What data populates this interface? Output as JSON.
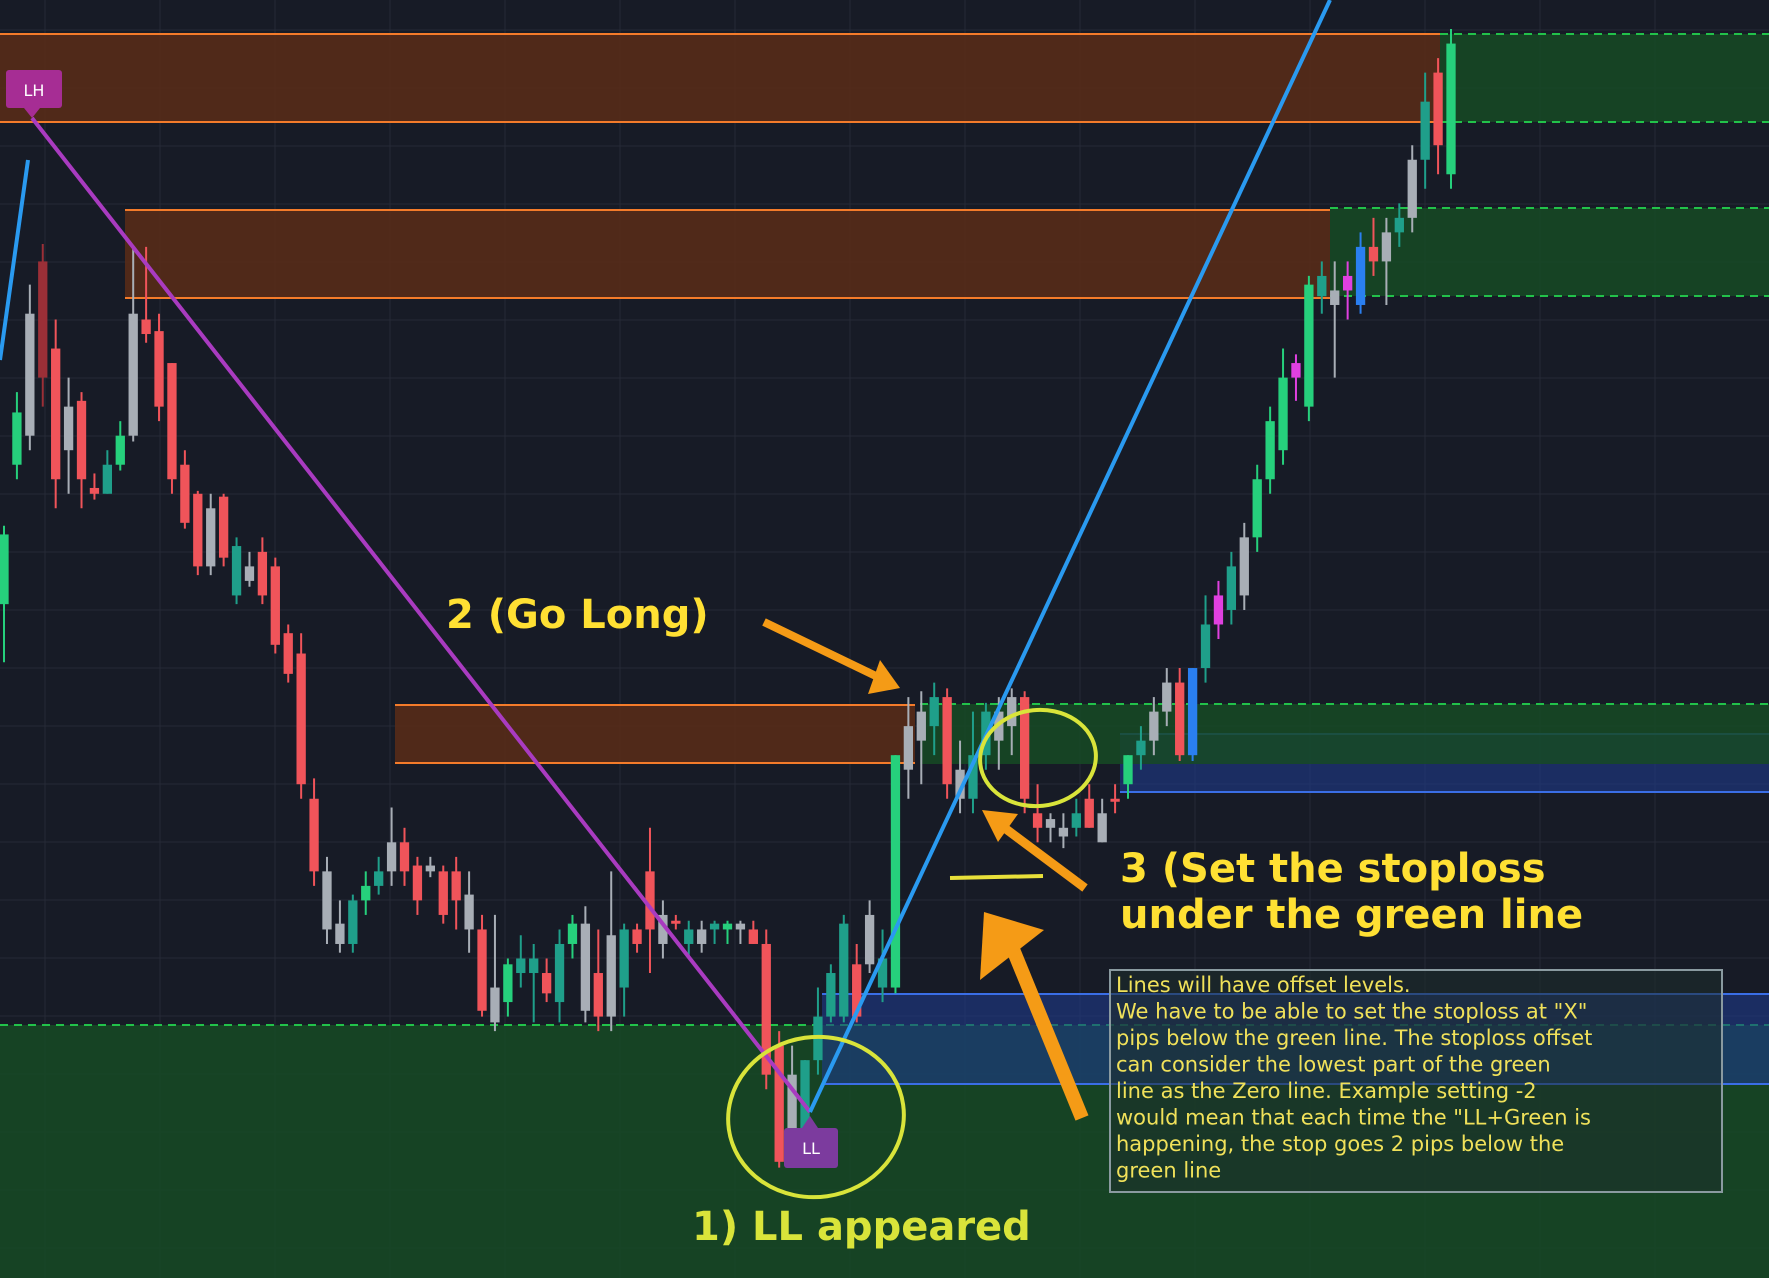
{
  "chart_data": {
    "type": "candlestick",
    "markers": [
      {
        "label": "LH",
        "color": "#a62d94"
      },
      {
        "label": "LL",
        "color": "#7c3b9e"
      }
    ],
    "annotations": [
      {
        "id": "go_long",
        "text": "2  (Go Long)",
        "color": "#ffe033"
      },
      {
        "id": "stoploss",
        "lines": [
          "3 (Set the stoploss",
          "under the green line"
        ],
        "color": "#ffe033"
      },
      {
        "id": "ll_appeared",
        "text": "1) LL appeared",
        "color": "#d9e43a"
      }
    ],
    "note_box": {
      "lines": [
        "Lines will have offset levels.",
        "We have to be able to set the stoploss at \"X\"",
        "pips below the green line. The stoploss offset",
        "can consider the lowest part of the green",
        "line as the Zero line. Example setting -2",
        "would mean that each time the \"LL+Green is",
        "happening, the stop goes 2 pips below the",
        "green line"
      ],
      "color": "#f0e15a"
    },
    "colors": {
      "background": "#171b26",
      "bull": "#26d07c",
      "bull_dark": "#1f9f8a",
      "bear": "#f0545a",
      "bear_dark": "#9b2f37",
      "neutral": "#a8aeb6",
      "magenta": "#e040e0",
      "blue": "#2a7ff0",
      "resistance_zone": "#5a2c18",
      "resistance_line": "#f47b2a",
      "support_zone": "#164a24",
      "support_line": "#22c24a",
      "trendline_down": "#a93bc0",
      "trendline_up": "#2a9af0",
      "arrow": "#f59b16"
    },
    "candles": [
      {
        "o": 0.72,
        "h": 0.99,
        "l": 0.52,
        "c": 0.96,
        "s": "bull"
      },
      {
        "o": 1.2,
        "h": 1.45,
        "l": 1.15,
        "c": 1.38,
        "s": "bull"
      },
      {
        "o": 1.3,
        "h": 1.82,
        "l": 1.25,
        "c": 1.72,
        "s": "neutral"
      },
      {
        "o": 1.5,
        "h": 1.96,
        "l": 1.4,
        "c": 1.9,
        "s": "bear_dark"
      },
      {
        "o": 1.6,
        "h": 1.7,
        "l": 1.05,
        "c": 1.15,
        "s": "bear"
      },
      {
        "o": 1.4,
        "h": 1.5,
        "l": 1.1,
        "c": 1.25,
        "s": "neutral"
      },
      {
        "o": 1.42,
        "h": 1.45,
        "l": 1.05,
        "c": 1.15,
        "s": "bear"
      },
      {
        "o": 1.12,
        "h": 1.17,
        "l": 1.08,
        "c": 1.1,
        "s": "bear"
      },
      {
        "o": 1.1,
        "h": 1.25,
        "l": 1.1,
        "c": 1.2,
        "s": "bull_dark"
      },
      {
        "o": 1.2,
        "h": 1.35,
        "l": 1.18,
        "c": 1.3,
        "s": "bull"
      },
      {
        "o": 1.3,
        "h": 1.95,
        "l": 1.28,
        "c": 1.72,
        "s": "neutral"
      },
      {
        "o": 1.7,
        "h": 1.95,
        "l": 1.62,
        "c": 1.65,
        "s": "bear"
      },
      {
        "o": 1.66,
        "h": 1.72,
        "l": 1.35,
        "c": 1.4,
        "s": "bear"
      },
      {
        "o": 1.55,
        "h": 1.55,
        "l": 1.1,
        "c": 1.15,
        "s": "bear"
      },
      {
        "o": 1.2,
        "h": 1.25,
        "l": 0.98,
        "c": 1.0,
        "s": "bear"
      },
      {
        "o": 1.1,
        "h": 1.11,
        "l": 0.82,
        "c": 0.85,
        "s": "bear"
      },
      {
        "o": 1.05,
        "h": 1.1,
        "l": 0.82,
        "c": 0.85,
        "s": "neutral"
      },
      {
        "o": 1.09,
        "h": 1.1,
        "l": 0.85,
        "c": 0.88,
        "s": "bear"
      },
      {
        "o": 0.92,
        "h": 0.95,
        "l": 0.72,
        "c": 0.75,
        "s": "bull_dark"
      },
      {
        "o": 0.85,
        "h": 0.9,
        "l": 0.78,
        "c": 0.8,
        "s": "neutral"
      },
      {
        "o": 0.9,
        "h": 0.95,
        "l": 0.72,
        "c": 0.75,
        "s": "bear"
      },
      {
        "o": 0.85,
        "h": 0.88,
        "l": 0.55,
        "c": 0.58,
        "s": "bear"
      },
      {
        "o": 0.62,
        "h": 0.65,
        "l": 0.45,
        "c": 0.48,
        "s": "bear"
      },
      {
        "o": 0.55,
        "h": 0.62,
        "l": 0.05,
        "c": 0.1,
        "s": "bear"
      },
      {
        "o": 0.05,
        "h": 0.12,
        "l": -0.25,
        "c": -0.2,
        "s": "bear"
      },
      {
        "o": -0.2,
        "h": -0.15,
        "l": -0.45,
        "c": -0.4,
        "s": "neutral"
      },
      {
        "o": -0.38,
        "h": -0.3,
        "l": -0.48,
        "c": -0.45,
        "s": "neutral"
      },
      {
        "o": -0.45,
        "h": -0.28,
        "l": -0.48,
        "c": -0.3,
        "s": "bull_dark"
      },
      {
        "o": -0.3,
        "h": -0.2,
        "l": -0.35,
        "c": -0.25,
        "s": "bull"
      },
      {
        "o": -0.25,
        "h": -0.15,
        "l": -0.28,
        "c": -0.2,
        "s": "bull_dark"
      },
      {
        "o": -0.2,
        "h": 0.02,
        "l": -0.25,
        "c": -0.1,
        "s": "neutral"
      },
      {
        "o": -0.1,
        "h": -0.05,
        "l": -0.25,
        "c": -0.2,
        "s": "bear"
      },
      {
        "o": -0.18,
        "h": -0.15,
        "l": -0.35,
        "c": -0.3,
        "s": "bear"
      },
      {
        "o": -0.2,
        "h": -0.15,
        "l": -0.22,
        "c": -0.18,
        "s": "neutral"
      },
      {
        "o": -0.2,
        "h": -0.18,
        "l": -0.38,
        "c": -0.35,
        "s": "bear"
      },
      {
        "o": -0.2,
        "h": -0.15,
        "l": -0.4,
        "c": -0.3,
        "s": "bear"
      },
      {
        "o": -0.28,
        "h": -0.2,
        "l": -0.48,
        "c": -0.4,
        "s": "neutral"
      },
      {
        "o": -0.4,
        "h": -0.35,
        "l": -0.7,
        "c": -0.68,
        "s": "bear"
      },
      {
        "o": -0.6,
        "h": -0.35,
        "l": -0.75,
        "c": -0.72,
        "s": "neutral"
      },
      {
        "o": -0.65,
        "h": -0.5,
        "l": -0.7,
        "c": -0.52,
        "s": "bull"
      },
      {
        "o": -0.55,
        "h": -0.42,
        "l": -0.6,
        "c": -0.5,
        "s": "bull_dark"
      },
      {
        "o": -0.5,
        "h": -0.45,
        "l": -0.72,
        "c": -0.55,
        "s": "bull_dark"
      },
      {
        "o": -0.55,
        "h": -0.5,
        "l": -0.65,
        "c": -0.62,
        "s": "bear"
      },
      {
        "o": -0.65,
        "h": -0.4,
        "l": -0.72,
        "c": -0.45,
        "s": "bull_dark"
      },
      {
        "o": -0.45,
        "h": -0.35,
        "l": -0.5,
        "c": -0.38,
        "s": "bull"
      },
      {
        "o": -0.38,
        "h": -0.32,
        "l": -0.72,
        "c": -0.68,
        "s": "neutral"
      },
      {
        "o": -0.55,
        "h": -0.4,
        "l": -0.75,
        "c": -0.7,
        "s": "bear"
      },
      {
        "o": -0.42,
        "h": -0.2,
        "l": -0.75,
        "c": -0.7,
        "s": "neutral"
      },
      {
        "o": -0.4,
        "h": -0.38,
        "l": -0.7,
        "c": -0.6,
        "s": "bull_dark"
      },
      {
        "o": -0.45,
        "h": -0.38,
        "l": -0.48,
        "c": -0.4,
        "s": "bear"
      },
      {
        "o": -0.4,
        "h": -0.05,
        "l": -0.55,
        "c": -0.2,
        "s": "bear"
      },
      {
        "o": -0.35,
        "h": -0.3,
        "l": -0.5,
        "c": -0.45,
        "s": "neutral"
      },
      {
        "o": -0.38,
        "h": -0.35,
        "l": -0.4,
        "c": -0.37,
        "s": "bear"
      },
      {
        "o": -0.4,
        "h": -0.37,
        "l": -0.5,
        "c": -0.45,
        "s": "bull_dark"
      },
      {
        "o": -0.45,
        "h": -0.37,
        "l": -0.48,
        "c": -0.4,
        "s": "neutral"
      },
      {
        "o": -0.38,
        "h": -0.37,
        "l": -0.45,
        "c": -0.4,
        "s": "bull_dark"
      },
      {
        "o": -0.4,
        "h": -0.37,
        "l": -0.45,
        "c": -0.38,
        "s": "bull"
      },
      {
        "o": -0.4,
        "h": -0.37,
        "l": -0.45,
        "c": -0.38,
        "s": "neutral"
      },
      {
        "o": -0.4,
        "h": -0.37,
        "l": -0.45,
        "c": -0.45,
        "s": "bear"
      },
      {
        "o": -0.45,
        "h": -0.4,
        "l": -0.95,
        "c": -0.9,
        "s": "bear"
      },
      {
        "o": -0.8,
        "h": -0.75,
        "l": -1.22,
        "c": -1.2,
        "s": "bear"
      },
      {
        "o": -0.9,
        "h": -0.8,
        "l": -1.22,
        "c": -1.1,
        "s": "neutral"
      },
      {
        "o": -1.1,
        "h": -0.85,
        "l": -1.18,
        "c": -0.85,
        "s": "bull_dark"
      },
      {
        "o": -0.85,
        "h": -0.6,
        "l": -0.9,
        "c": -0.7,
        "s": "bull_dark"
      },
      {
        "o": -0.7,
        "h": -0.52,
        "l": -0.72,
        "c": -0.55,
        "s": "bull_dark"
      },
      {
        "o": -0.7,
        "h": -0.35,
        "l": -0.72,
        "c": -0.38,
        "s": "bull_dark"
      },
      {
        "o": -0.7,
        "h": -0.45,
        "l": -0.72,
        "c": -0.52,
        "s": "bear"
      },
      {
        "o": -0.52,
        "h": -0.3,
        "l": -0.55,
        "c": -0.35,
        "s": "neutral"
      },
      {
        "o": -0.5,
        "h": -0.4,
        "l": -0.65,
        "c": -0.6,
        "s": "bull_dark"
      },
      {
        "o": -0.6,
        "h": 0.2,
        "l": -0.62,
        "c": 0.2,
        "s": "bull"
      },
      {
        "o": 0.15,
        "h": 0.4,
        "l": 0.05,
        "c": 0.3,
        "s": "neutral"
      },
      {
        "o": 0.25,
        "h": 0.42,
        "l": 0.1,
        "c": 0.35,
        "s": "neutral"
      },
      {
        "o": 0.3,
        "h": 0.45,
        "l": 0.2,
        "c": 0.4,
        "s": "bull_dark"
      },
      {
        "o": 0.4,
        "h": 0.43,
        "l": 0.05,
        "c": 0.1,
        "s": "bear"
      },
      {
        "o": 0.15,
        "h": 0.25,
        "l": 0.0,
        "c": 0.05,
        "s": "neutral"
      },
      {
        "o": 0.05,
        "h": 0.35,
        "l": 0.0,
        "c": 0.2,
        "s": "bull_dark"
      },
      {
        "o": 0.35,
        "h": 0.38,
        "l": 0.15,
        "c": 0.2,
        "s": "bull_dark"
      },
      {
        "o": 0.25,
        "h": 0.4,
        "l": 0.15,
        "c": 0.35,
        "s": "neutral"
      },
      {
        "o": 0.4,
        "h": 0.43,
        "l": 0.2,
        "c": 0.3,
        "s": "neutral"
      },
      {
        "o": 0.4,
        "h": 0.42,
        "l": 0.0,
        "c": 0.05,
        "s": "bear"
      },
      {
        "o": 0.0,
        "h": 0.1,
        "l": -0.1,
        "c": -0.05,
        "s": "bear"
      },
      {
        "o": -0.05,
        "h": 0.0,
        "l": -0.1,
        "c": -0.02,
        "s": "neutral"
      },
      {
        "o": -0.08,
        "h": 0.0,
        "l": -0.12,
        "c": -0.05,
        "s": "neutral"
      },
      {
        "o": -0.05,
        "h": 0.05,
        "l": -0.08,
        "c": 0.0,
        "s": "bull_dark"
      },
      {
        "o": 0.05,
        "h": 0.1,
        "l": -0.05,
        "c": -0.05,
        "s": "bear"
      },
      {
        "o": 0.0,
        "h": 0.05,
        "l": -0.1,
        "c": -0.1,
        "s": "neutral"
      },
      {
        "o": 0.05,
        "h": 0.1,
        "l": 0.0,
        "c": 0.05,
        "s": "bear"
      },
      {
        "o": 0.1,
        "h": 0.2,
        "l": 0.05,
        "c": 0.2,
        "s": "bull"
      },
      {
        "o": 0.2,
        "h": 0.3,
        "l": 0.15,
        "c": 0.25,
        "s": "bull_dark"
      },
      {
        "o": 0.25,
        "h": 0.4,
        "l": 0.2,
        "c": 0.35,
        "s": "neutral"
      },
      {
        "o": 0.35,
        "h": 0.5,
        "l": 0.3,
        "c": 0.45,
        "s": "neutral"
      },
      {
        "o": 0.2,
        "h": 0.5,
        "l": 0.18,
        "c": 0.45,
        "s": "bear"
      },
      {
        "o": 0.2,
        "h": 0.5,
        "l": 0.18,
        "c": 0.5,
        "s": "blue"
      },
      {
        "o": 0.5,
        "h": 0.75,
        "l": 0.45,
        "c": 0.65,
        "s": "bull_dark"
      },
      {
        "o": 0.65,
        "h": 0.8,
        "l": 0.6,
        "c": 0.75,
        "s": "magenta"
      },
      {
        "o": 0.7,
        "h": 0.9,
        "l": 0.65,
        "c": 0.85,
        "s": "bull_dark"
      },
      {
        "o": 0.75,
        "h": 1.0,
        "l": 0.7,
        "c": 0.95,
        "s": "neutral"
      },
      {
        "o": 0.95,
        "h": 1.2,
        "l": 0.9,
        "c": 1.15,
        "s": "bull"
      },
      {
        "o": 1.15,
        "h": 1.4,
        "l": 1.1,
        "c": 1.35,
        "s": "bull"
      },
      {
        "o": 1.25,
        "h": 1.6,
        "l": 1.2,
        "c": 1.5,
        "s": "bull"
      },
      {
        "o": 1.5,
        "h": 1.58,
        "l": 1.42,
        "c": 1.55,
        "s": "magenta"
      },
      {
        "o": 1.4,
        "h": 1.85,
        "l": 1.35,
        "c": 1.82,
        "s": "bull"
      },
      {
        "o": 1.78,
        "h": 1.9,
        "l": 1.72,
        "c": 1.85,
        "s": "bull_dark"
      },
      {
        "o": 1.8,
        "h": 1.9,
        "l": 1.5,
        "c": 1.75,
        "s": "neutral"
      },
      {
        "o": 1.8,
        "h": 1.9,
        "l": 1.7,
        "c": 1.85,
        "s": "magenta"
      },
      {
        "o": 1.75,
        "h": 2.0,
        "l": 1.72,
        "c": 1.95,
        "s": "blue"
      },
      {
        "o": 1.95,
        "h": 2.05,
        "l": 1.85,
        "c": 1.9,
        "s": "bear"
      },
      {
        "o": 1.9,
        "h": 2.05,
        "l": 1.75,
        "c": 2.0,
        "s": "neutral"
      },
      {
        "o": 2.0,
        "h": 2.1,
        "l": 1.95,
        "c": 2.05,
        "s": "bull_dark"
      },
      {
        "o": 2.05,
        "h": 2.3,
        "l": 2.0,
        "c": 2.25,
        "s": "neutral"
      },
      {
        "o": 2.25,
        "h": 2.55,
        "l": 2.15,
        "c": 2.45,
        "s": "bull_dark"
      },
      {
        "o": 2.3,
        "h": 2.6,
        "l": 2.2,
        "c": 2.55,
        "s": "bear"
      },
      {
        "o": 2.2,
        "h": 2.7,
        "l": 2.15,
        "c": 2.65,
        "s": "bull"
      }
    ]
  }
}
